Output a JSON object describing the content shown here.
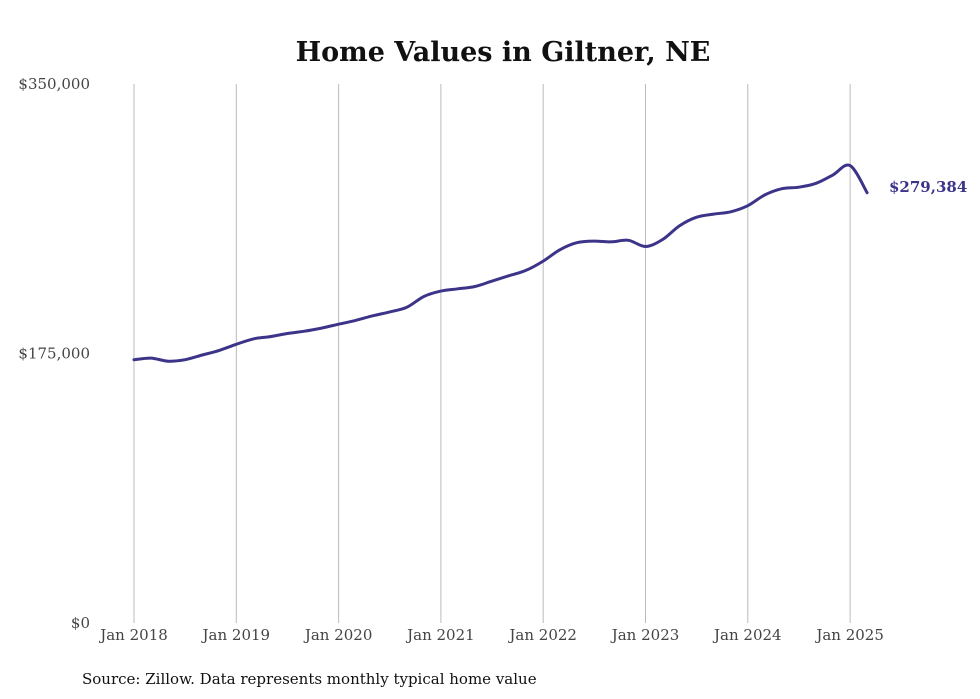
{
  "chart_data": {
    "type": "line",
    "title": "Home Values in Giltner, NE",
    "source": "Source: Zillow. Data represents monthly typical home value",
    "xlabel": "",
    "ylabel": "",
    "ylim": [
      0,
      350000
    ],
    "y_ticks": [
      {
        "value": 0,
        "label": "$0"
      },
      {
        "value": 175000,
        "label": "$175,000"
      },
      {
        "value": 350000,
        "label": "$350,000"
      }
    ],
    "x_ticks": [
      {
        "date": "2018-01",
        "label": "Jan 2018"
      },
      {
        "date": "2019-01",
        "label": "Jan 2019"
      },
      {
        "date": "2020-01",
        "label": "Jan 2020"
      },
      {
        "date": "2021-01",
        "label": "Jan 2021"
      },
      {
        "date": "2022-01",
        "label": "Jan 2022"
      },
      {
        "date": "2023-01",
        "label": "Jan 2023"
      },
      {
        "date": "2024-01",
        "label": "Jan 2024"
      },
      {
        "date": "2025-01",
        "label": "Jan 2025"
      }
    ],
    "grid": "vertical",
    "line_color": "#3c3489",
    "end_label": "$279,384",
    "series": [
      {
        "x": [
          "2018-01",
          "2018-03",
          "2018-05",
          "2018-07",
          "2018-09",
          "2018-11",
          "2019-01",
          "2019-03",
          "2019-05",
          "2019-07",
          "2019-09",
          "2019-11",
          "2020-01",
          "2020-03",
          "2020-05",
          "2020-07",
          "2020-09",
          "2020-11",
          "2021-01",
          "2021-03",
          "2021-05",
          "2021-07",
          "2021-09",
          "2021-11",
          "2022-01",
          "2022-03",
          "2022-05",
          "2022-07",
          "2022-09",
          "2022-11",
          "2023-01",
          "2023-03",
          "2023-05",
          "2023-07",
          "2023-09",
          "2023-11",
          "2024-01",
          "2024-03",
          "2024-05",
          "2024-07",
          "2024-09",
          "2024-11",
          "2025-01",
          "2025-03"
        ],
        "values": [
          171000,
          172000,
          170000,
          171000,
          174000,
          177000,
          181000,
          184500,
          186000,
          188000,
          189500,
          191500,
          194000,
          196500,
          199500,
          202000,
          205000,
          212000,
          215500,
          217000,
          218500,
          222000,
          225500,
          229000,
          235000,
          242500,
          247000,
          248000,
          247500,
          248500,
          244500,
          249000,
          258000,
          263500,
          265500,
          267000,
          271000,
          278000,
          282000,
          283000,
          285500,
          291000,
          297000,
          279384
        ]
      }
    ]
  }
}
